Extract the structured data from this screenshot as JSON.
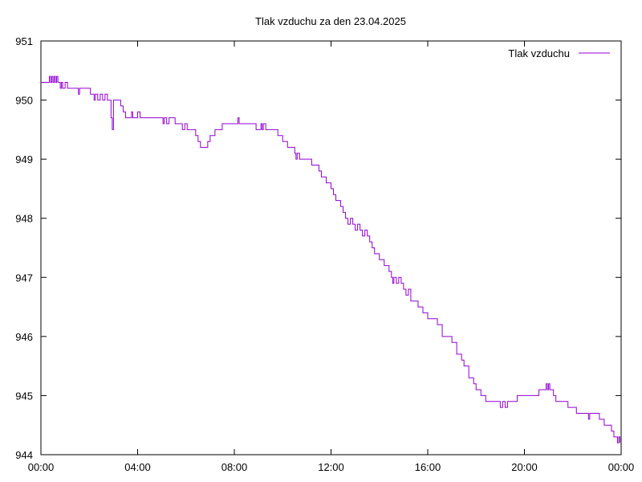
{
  "chart_data": {
    "type": "line",
    "title": "Tlak vzduchu za den 23.04.2025",
    "xlabel": "",
    "ylabel": "",
    "xlim": [
      0,
      24
    ],
    "ylim": [
      944,
      951
    ],
    "grid": false,
    "legend_position": "top-right",
    "x_tick_values": [
      0,
      4,
      8,
      12,
      16,
      20,
      24
    ],
    "x_tick_labels": [
      "00:00",
      "04:00",
      "08:00",
      "12:00",
      "16:00",
      "20:00",
      "00:00"
    ],
    "y_tick_values": [
      944,
      945,
      946,
      947,
      948,
      949,
      950,
      951
    ],
    "y_tick_labels": [
      "944",
      "945",
      "946",
      "947",
      "948",
      "949",
      "950",
      "951"
    ],
    "series": [
      {
        "name": "Tlak vzduchu",
        "color": "#9400d3",
        "points": [
          [
            0.0,
            950.3
          ],
          [
            0.3,
            950.3
          ],
          [
            0.35,
            950.4
          ],
          [
            0.4,
            950.3
          ],
          [
            0.45,
            950.4
          ],
          [
            0.5,
            950.3
          ],
          [
            0.55,
            950.4
          ],
          [
            0.6,
            950.3
          ],
          [
            0.65,
            950.4
          ],
          [
            0.7,
            950.3
          ],
          [
            0.8,
            950.2
          ],
          [
            0.85,
            950.3
          ],
          [
            0.9,
            950.2
          ],
          [
            1.0,
            950.3
          ],
          [
            1.1,
            950.2
          ],
          [
            1.5,
            950.2
          ],
          [
            1.55,
            950.1
          ],
          [
            1.6,
            950.2
          ],
          [
            2.0,
            950.2
          ],
          [
            2.05,
            950.1
          ],
          [
            2.2,
            950.0
          ],
          [
            2.25,
            950.1
          ],
          [
            2.35,
            950.0
          ],
          [
            2.45,
            950.1
          ],
          [
            2.55,
            950.0
          ],
          [
            2.65,
            950.1
          ],
          [
            2.75,
            950.0
          ],
          [
            2.85,
            950.0
          ],
          [
            2.9,
            949.7
          ],
          [
            2.95,
            949.5
          ],
          [
            3.0,
            950.0
          ],
          [
            3.2,
            950.0
          ],
          [
            3.3,
            949.9
          ],
          [
            3.4,
            949.8
          ],
          [
            3.5,
            949.7
          ],
          [
            3.7,
            949.7
          ],
          [
            3.75,
            949.8
          ],
          [
            3.8,
            949.7
          ],
          [
            4.0,
            949.8
          ],
          [
            4.1,
            949.7
          ],
          [
            5.0,
            949.7
          ],
          [
            5.05,
            949.6
          ],
          [
            5.1,
            949.7
          ],
          [
            5.2,
            949.6
          ],
          [
            5.3,
            949.7
          ],
          [
            5.5,
            949.7
          ],
          [
            5.55,
            949.6
          ],
          [
            5.8,
            949.6
          ],
          [
            5.85,
            949.5
          ],
          [
            5.95,
            949.6
          ],
          [
            6.05,
            949.5
          ],
          [
            6.3,
            949.5
          ],
          [
            6.4,
            949.4
          ],
          [
            6.5,
            949.3
          ],
          [
            6.6,
            949.2
          ],
          [
            6.8,
            949.2
          ],
          [
            6.9,
            949.3
          ],
          [
            7.0,
            949.4
          ],
          [
            7.2,
            949.5
          ],
          [
            7.4,
            949.5
          ],
          [
            7.5,
            949.6
          ],
          [
            8.1,
            949.6
          ],
          [
            8.15,
            949.7
          ],
          [
            8.2,
            949.6
          ],
          [
            8.8,
            949.6
          ],
          [
            8.9,
            949.5
          ],
          [
            9.0,
            949.5
          ],
          [
            9.1,
            949.6
          ],
          [
            9.15,
            949.5
          ],
          [
            9.2,
            949.6
          ],
          [
            9.3,
            949.5
          ],
          [
            9.7,
            949.5
          ],
          [
            9.8,
            949.4
          ],
          [
            9.9,
            949.4
          ],
          [
            10.0,
            949.3
          ],
          [
            10.2,
            949.2
          ],
          [
            10.4,
            949.2
          ],
          [
            10.5,
            949.1
          ],
          [
            10.55,
            949.0
          ],
          [
            10.6,
            949.1
          ],
          [
            10.7,
            949.0
          ],
          [
            10.9,
            949.0
          ],
          [
            11.0,
            949.0
          ],
          [
            11.2,
            948.9
          ],
          [
            11.4,
            948.9
          ],
          [
            11.5,
            948.8
          ],
          [
            11.6,
            948.7
          ],
          [
            11.8,
            948.6
          ],
          [
            12.0,
            948.5
          ],
          [
            12.1,
            948.4
          ],
          [
            12.2,
            948.3
          ],
          [
            12.4,
            948.2
          ],
          [
            12.5,
            948.1
          ],
          [
            12.6,
            948.0
          ],
          [
            12.7,
            947.9
          ],
          [
            12.8,
            948.0
          ],
          [
            12.9,
            947.9
          ],
          [
            13.0,
            947.8
          ],
          [
            13.1,
            947.9
          ],
          [
            13.2,
            947.8
          ],
          [
            13.3,
            947.7
          ],
          [
            13.4,
            947.8
          ],
          [
            13.5,
            947.7
          ],
          [
            13.6,
            947.6
          ],
          [
            13.7,
            947.5
          ],
          [
            13.8,
            947.4
          ],
          [
            14.0,
            947.3
          ],
          [
            14.2,
            947.2
          ],
          [
            14.4,
            947.1
          ],
          [
            14.5,
            947.0
          ],
          [
            14.55,
            946.9
          ],
          [
            14.6,
            947.0
          ],
          [
            14.7,
            946.9
          ],
          [
            14.8,
            947.0
          ],
          [
            14.9,
            946.9
          ],
          [
            15.0,
            946.8
          ],
          [
            15.1,
            946.7
          ],
          [
            15.2,
            946.8
          ],
          [
            15.3,
            946.6
          ],
          [
            15.4,
            946.6
          ],
          [
            15.6,
            946.5
          ],
          [
            15.8,
            946.4
          ],
          [
            16.0,
            946.3
          ],
          [
            16.2,
            946.3
          ],
          [
            16.4,
            946.2
          ],
          [
            16.6,
            946.0
          ],
          [
            16.8,
            946.0
          ],
          [
            17.0,
            945.9
          ],
          [
            17.2,
            945.7
          ],
          [
            17.4,
            945.6
          ],
          [
            17.5,
            945.5
          ],
          [
            17.7,
            945.3
          ],
          [
            17.9,
            945.2
          ],
          [
            18.0,
            945.1
          ],
          [
            18.2,
            945.0
          ],
          [
            18.4,
            944.9
          ],
          [
            18.6,
            944.9
          ],
          [
            18.8,
            944.9
          ],
          [
            19.0,
            944.8
          ],
          [
            19.1,
            944.9
          ],
          [
            19.2,
            944.8
          ],
          [
            19.3,
            944.9
          ],
          [
            19.6,
            944.9
          ],
          [
            19.7,
            945.0
          ],
          [
            20.5,
            945.0
          ],
          [
            20.6,
            945.1
          ],
          [
            20.8,
            945.1
          ],
          [
            20.9,
            945.2
          ],
          [
            20.95,
            945.1
          ],
          [
            21.0,
            945.2
          ],
          [
            21.05,
            945.1
          ],
          [
            21.1,
            945.1
          ],
          [
            21.2,
            945.0
          ],
          [
            21.3,
            944.9
          ],
          [
            21.7,
            944.9
          ],
          [
            21.8,
            944.8
          ],
          [
            22.1,
            944.8
          ],
          [
            22.15,
            944.7
          ],
          [
            22.6,
            944.7
          ],
          [
            22.65,
            944.6
          ],
          [
            22.7,
            944.7
          ],
          [
            23.0,
            944.7
          ],
          [
            23.1,
            944.6
          ],
          [
            23.3,
            944.5
          ],
          [
            23.5,
            944.5
          ],
          [
            23.6,
            944.4
          ],
          [
            23.7,
            944.3
          ],
          [
            23.8,
            944.3
          ],
          [
            23.85,
            944.2
          ],
          [
            23.9,
            944.3
          ],
          [
            23.95,
            944.2
          ]
        ]
      }
    ]
  }
}
